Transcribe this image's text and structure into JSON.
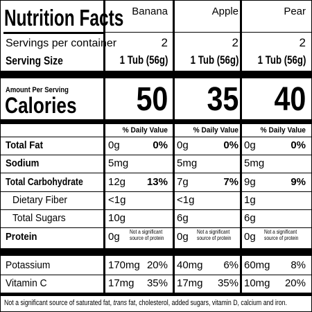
{
  "title": "Nutrition Facts",
  "columns": [
    {
      "name": "Banana",
      "servings": "2",
      "serving_size": "1 Tub (56g)",
      "calories": "50",
      "total_fat": {
        "amount": "0g",
        "dv": "0%"
      },
      "sodium": {
        "amount": "5mg"
      },
      "total_carbohydrate": {
        "amount": "12g",
        "dv": "13%"
      },
      "dietary_fiber": {
        "amount": "<1g"
      },
      "total_sugars": {
        "amount": "10g"
      },
      "protein": {
        "amount": "0g"
      },
      "potassium": {
        "amount": "170mg",
        "dv": "20%"
      },
      "vitamin_c": {
        "amount": "17mg",
        "dv": "35%"
      }
    },
    {
      "name": "Apple",
      "servings": "2",
      "serving_size": "1 Tub (56g)",
      "calories": "35",
      "total_fat": {
        "amount": "0g",
        "dv": "0%"
      },
      "sodium": {
        "amount": "5mg"
      },
      "total_carbohydrate": {
        "amount": "7g",
        "dv": "7%"
      },
      "dietary_fiber": {
        "amount": "<1g"
      },
      "total_sugars": {
        "amount": "6g"
      },
      "protein": {
        "amount": "0g"
      },
      "potassium": {
        "amount": "40mg",
        "dv": "6%"
      },
      "vitamin_c": {
        "amount": "17mg",
        "dv": "35%"
      }
    },
    {
      "name": "Pear",
      "servings": "2",
      "serving_size": "1 Tub (56g)",
      "calories": "40",
      "total_fat": {
        "amount": "0g",
        "dv": "0%"
      },
      "sodium": {
        "amount": "5mg"
      },
      "total_carbohydrate": {
        "amount": "9g",
        "dv": "9%"
      },
      "dietary_fiber": {
        "amount": "1g"
      },
      "total_sugars": {
        "amount": "6g"
      },
      "protein": {
        "amount": "0g"
      },
      "potassium": {
        "amount": "60mg",
        "dv": "8%"
      },
      "vitamin_c": {
        "amount": "10mg",
        "dv": "20%"
      }
    }
  ],
  "labels": {
    "servings_per_container": "Servings per container",
    "serving_size": "Serving Size",
    "amount_per_serving": "Amount Per Serving",
    "calories": "Calories",
    "daily_value": "% Daily Value",
    "total_fat": "Total Fat",
    "sodium": "Sodium",
    "total_carbohydrate": "Total Carbohydrate",
    "dietary_fiber": "Dietary Fiber",
    "total_sugars": "Total Sugars",
    "protein": "Protein",
    "potassium": "Potassium",
    "vitamin_c": "Vitamin C",
    "protein_note_line1": "Not a significant",
    "protein_note_line2": "source of protein"
  },
  "footnote": {
    "part1": "Not a significant source of saturated fat, ",
    "trans": "trans",
    "part2": " fat, cholesterol, added sugars, vitamin D, calcium and iron."
  }
}
